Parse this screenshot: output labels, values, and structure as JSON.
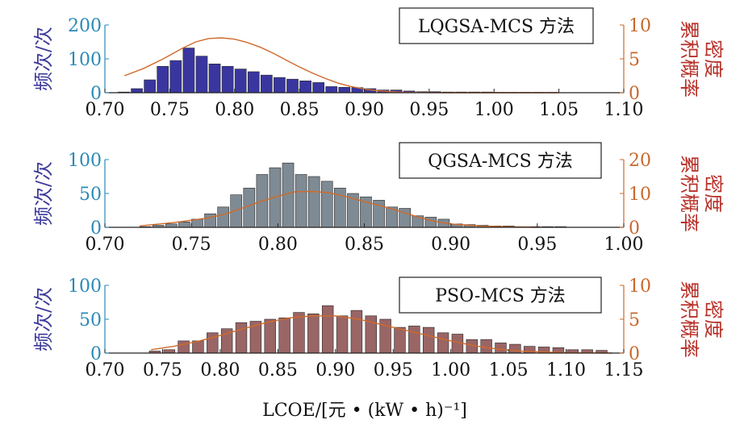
{
  "colors": {
    "axis_left": "#2a8ab8",
    "axis_right": "#c8692e",
    "ylabel_left": "#3d3a9a",
    "ylabel_right": "#b8322a",
    "curve": "#d06a2a",
    "bars": [
      "#3a36a0",
      "#7f8b94",
      "#9a6565"
    ]
  },
  "xlabel": "LCOE/[元 • (kW • h)⁻¹]",
  "chart_data": [
    {
      "type": "bar",
      "legend": "LQGSA-MCS 方法",
      "ylabel_left": "频次/次",
      "ylabel_right": [
        "累积概率",
        "密度"
      ],
      "xlim": [
        0.7,
        1.1
      ],
      "x_ticks": [
        "0.70",
        "0.75",
        "0.80",
        "0.85",
        "0.90",
        "0.95",
        "1.00",
        "1.05",
        "1.10"
      ],
      "ylim_left": [
        0,
        200
      ],
      "y_ticks_left": [
        "0",
        "100",
        "200"
      ],
      "ylim_right": [
        0,
        10
      ],
      "y_ticks_right": [
        "0",
        "5",
        "10"
      ],
      "bin_width": 0.0095,
      "bins": [
        0.715,
        0.725,
        0.735,
        0.745,
        0.755,
        0.765,
        0.775,
        0.785,
        0.795,
        0.805,
        0.815,
        0.825,
        0.835,
        0.845,
        0.855,
        0.865,
        0.875,
        0.885,
        0.895,
        0.905,
        0.915,
        0.925,
        0.935,
        0.945,
        0.955,
        0.965,
        0.975,
        0.985,
        0.995,
        1.005,
        1.015,
        1.025,
        1.035,
        1.045
      ],
      "values": [
        2,
        12,
        38,
        78,
        95,
        132,
        108,
        85,
        78,
        70,
        62,
        52,
        45,
        40,
        35,
        30,
        18,
        16,
        15,
        12,
        8,
        8,
        5,
        3,
        3,
        2,
        2,
        2,
        2,
        1,
        1,
        1,
        1,
        1
      ],
      "density_curve": {
        "x": [
          0.715,
          0.73,
          0.745,
          0.76,
          0.77,
          0.78,
          0.79,
          0.8,
          0.81,
          0.82,
          0.83,
          0.84,
          0.85,
          0.86,
          0.87,
          0.88,
          0.89,
          0.9,
          0.91,
          0.92,
          0.93,
          0.94,
          0.95,
          0.97,
          1.0,
          1.05
        ],
        "y": [
          2.5,
          3.6,
          5.0,
          6.6,
          7.5,
          8.0,
          8.1,
          7.9,
          7.4,
          6.7,
          5.8,
          4.8,
          3.8,
          2.9,
          2.1,
          1.4,
          0.9,
          0.55,
          0.3,
          0.15,
          0.07,
          0.03,
          0.01,
          0,
          0,
          0
        ]
      }
    },
    {
      "type": "bar",
      "legend": "QGSA-MCS 方法",
      "ylabel_left": "频次/次",
      "ylabel_right": [
        "累积概率",
        "密度"
      ],
      "xlim": [
        0.7,
        1.0
      ],
      "x_ticks": [
        "0.70",
        "0.75",
        "0.80",
        "0.85",
        "0.90",
        "0.95",
        "1.00"
      ],
      "ylim_left": [
        0,
        100
      ],
      "y_ticks_left": [
        "0",
        "50",
        "100"
      ],
      "ylim_right": [
        0,
        20
      ],
      "y_ticks_right": [
        "0",
        "10",
        "20"
      ],
      "bin_width": 0.0071,
      "bins": [
        0.7237,
        0.7312,
        0.7387,
        0.7462,
        0.7537,
        0.7612,
        0.7687,
        0.7762,
        0.7837,
        0.7912,
        0.7987,
        0.8062,
        0.8137,
        0.8212,
        0.8287,
        0.8362,
        0.8437,
        0.8512,
        0.8587,
        0.8662,
        0.8737,
        0.8812,
        0.8887,
        0.8962,
        0.9037,
        0.9112,
        0.9187,
        0.9262,
        0.9337,
        0.9412,
        0.9487,
        0.9562,
        0.9637
      ],
      "values": [
        1,
        3,
        5,
        8,
        12,
        20,
        30,
        48,
        58,
        78,
        88,
        95,
        78,
        75,
        68,
        58,
        50,
        45,
        40,
        30,
        28,
        17,
        15,
        12,
        5,
        4,
        3,
        2,
        2,
        1,
        1,
        1,
        1
      ],
      "density_curve": {
        "x": [
          0.72,
          0.74,
          0.76,
          0.77,
          0.78,
          0.79,
          0.8,
          0.81,
          0.82,
          0.83,
          0.84,
          0.85,
          0.86,
          0.87,
          0.88,
          0.89,
          0.9,
          0.91,
          0.92,
          0.93,
          0.95
        ],
        "y": [
          0.4,
          1.4,
          2.8,
          4.0,
          5.8,
          7.6,
          9.2,
          10.5,
          10.6,
          10.2,
          9.0,
          7.6,
          6.3,
          4.8,
          3.2,
          1.8,
          1.0,
          0.6,
          0.3,
          0.2,
          0
        ]
      }
    },
    {
      "type": "bar",
      "legend": "PSO-MCS 方法",
      "ylabel_left": "频次/次",
      "ylabel_right": [
        "累积概率",
        "密度"
      ],
      "xlim": [
        0.7,
        1.15
      ],
      "x_ticks": [
        "0.70",
        "0.75",
        "0.80",
        "0.85",
        "0.90",
        "0.95",
        "1.00",
        "1.05",
        "1.10",
        "1.15"
      ],
      "ylim_left": [
        0,
        100
      ],
      "y_ticks_left": [
        "0",
        "50",
        "100"
      ],
      "ylim_right": [
        0,
        10
      ],
      "y_ticks_right": [
        "0",
        "5",
        "10"
      ],
      "bin_width": 0.0105,
      "bins": [
        0.7437,
        0.7563,
        0.7687,
        0.7812,
        0.7937,
        0.8062,
        0.8187,
        0.8312,
        0.8437,
        0.8562,
        0.8687,
        0.8812,
        0.8937,
        0.9062,
        0.9187,
        0.9312,
        0.9437,
        0.9562,
        0.9687,
        0.9812,
        0.9937,
        1.0062,
        1.0187,
        1.0312,
        1.0437,
        1.0562,
        1.0687,
        1.0812,
        1.0937,
        1.1062,
        1.1187,
        1.1312
      ],
      "values": [
        3,
        5,
        18,
        18,
        30,
        36,
        45,
        47,
        50,
        52,
        60,
        58,
        70,
        55,
        63,
        55,
        50,
        38,
        40,
        38,
        30,
        28,
        20,
        20,
        15,
        13,
        10,
        9,
        8,
        5,
        5,
        4
      ],
      "density_curve": {
        "x": [
          0.74,
          0.76,
          0.78,
          0.8,
          0.82,
          0.84,
          0.86,
          0.88,
          0.9,
          0.92,
          0.94,
          0.96,
          0.98,
          1.0,
          1.02,
          1.04,
          1.06,
          1.08,
          1.1,
          1.12,
          1.14
        ],
        "y": [
          0.5,
          1.0,
          1.7,
          2.6,
          3.6,
          4.5,
          5.2,
          5.5,
          5.5,
          5.0,
          4.2,
          3.4,
          2.6,
          1.8,
          1.1,
          0.6,
          0.3,
          0.15,
          0.05,
          0.02,
          0
        ]
      }
    }
  ]
}
